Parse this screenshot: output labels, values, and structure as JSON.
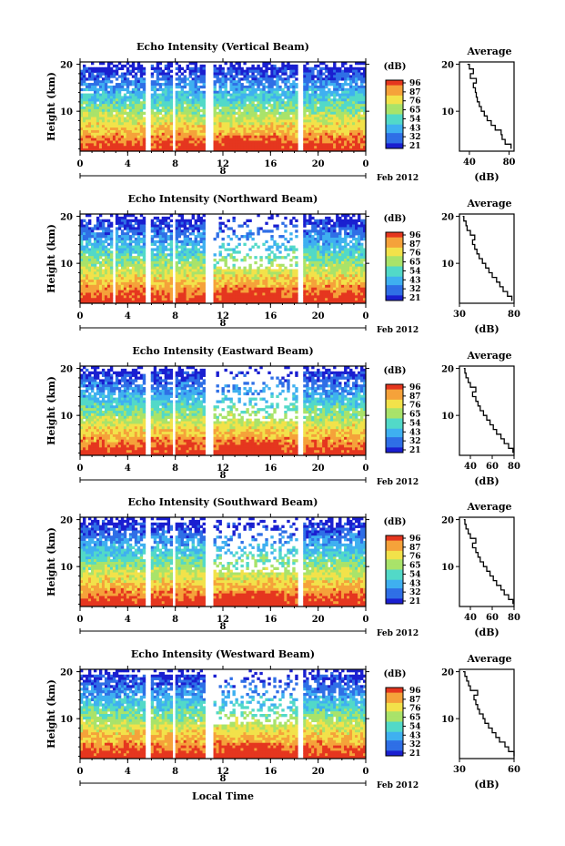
{
  "chart_data": {
    "type": "heatmap",
    "time_label": "Local Time",
    "date_label": "Feb 2012",
    "day_label": "8",
    "x_ticks": [
      "0",
      "4",
      "8",
      "12",
      "16",
      "20",
      "0"
    ],
    "height_label": "Height (km)",
    "height_ticks": [
      "20",
      "10"
    ],
    "height_range_km": [
      1.5,
      20.5
    ],
    "colorbar_unit": "(dB)",
    "colorbar_ticks": [
      "96",
      "87",
      "76",
      "65",
      "54",
      "43",
      "32",
      "21"
    ],
    "average_title": "Average",
    "average_xlabel": "(dB)",
    "colors": {
      "scale": [
        "#1a1fd0",
        "#2f6fe6",
        "#3fb0f0",
        "#52d9c8",
        "#a9e36a",
        "#f2e24a",
        "#f5a23a",
        "#e5361f"
      ],
      "axis": "#000000",
      "missing": "#ffffff"
    },
    "panels": [
      {
        "title": "Echo Intensity (Vertical Beam)",
        "x_range_h": [
          0,
          24
        ],
        "gaps_h": [
          [
            5.5,
            6.0
          ],
          [
            7.8,
            8.1
          ],
          [
            10.6,
            11.3
          ],
          [
            18.2,
            18.7
          ]
        ],
        "profile_ticks": [
          "40",
          "80"
        ],
        "profile_xlim": [
          30,
          85
        ],
        "profile_height_km": [
          2,
          3,
          4,
          5,
          6,
          7,
          8,
          9,
          10,
          11,
          12,
          13,
          14,
          15,
          16,
          17,
          18,
          19,
          20
        ],
        "profile_db": [
          82,
          76,
          73,
          72,
          66,
          62,
          58,
          55,
          52,
          50,
          48,
          47,
          46,
          44,
          47,
          41,
          44,
          40,
          38
        ]
      },
      {
        "title": "Echo Intensity (Northward Beam)",
        "x_range_h": [
          0,
          24
        ],
        "gaps_h": [
          [
            2.7,
            2.9
          ],
          [
            5.5,
            6.0
          ],
          [
            7.8,
            8.1
          ],
          [
            10.6,
            11.3
          ],
          [
            18.2,
            18.7
          ]
        ],
        "profile_ticks": [
          "30",
          "80"
        ],
        "profile_xlim": [
          30,
          80
        ],
        "profile_height_km": [
          2,
          3,
          4,
          5,
          6,
          7,
          8,
          9,
          10,
          11,
          12,
          13,
          14,
          15,
          16,
          17,
          18,
          19,
          20
        ],
        "profile_db": [
          78,
          74,
          70,
          67,
          64,
          60,
          57,
          54,
          51,
          48,
          46,
          44,
          42,
          44,
          40,
          37,
          36,
          34,
          33
        ]
      },
      {
        "title": "Echo Intensity (Eastward Beam)",
        "x_range_h": [
          0,
          24
        ],
        "gaps_h": [
          [
            5.5,
            6.0
          ],
          [
            7.8,
            8.1
          ],
          [
            10.6,
            11.3
          ],
          [
            18.2,
            18.7
          ]
        ],
        "profile_ticks": [
          "40",
          "60",
          "80"
        ],
        "profile_xlim": [
          30,
          80
        ],
        "profile_height_km": [
          2,
          3,
          4,
          5,
          6,
          7,
          8,
          9,
          10,
          11,
          12,
          13,
          14,
          15,
          16,
          17,
          18,
          19,
          20
        ],
        "profile_db": [
          79,
          75,
          71,
          68,
          64,
          61,
          58,
          55,
          52,
          49,
          47,
          45,
          42,
          45,
          40,
          38,
          36,
          35,
          34
        ]
      },
      {
        "title": "Echo Intensity (Southward Beam)",
        "x_range_h": [
          0,
          24
        ],
        "gaps_h": [
          [
            5.5,
            6.0
          ],
          [
            7.8,
            8.1
          ],
          [
            10.6,
            11.3
          ],
          [
            18.2,
            18.7
          ]
        ],
        "profile_ticks": [
          "40",
          "60",
          "80"
        ],
        "profile_xlim": [
          30,
          80
        ],
        "profile_height_km": [
          2,
          3,
          4,
          5,
          6,
          7,
          8,
          9,
          10,
          11,
          12,
          13,
          14,
          15,
          16,
          17,
          18,
          19,
          20
        ],
        "profile_db": [
          79,
          75,
          71,
          68,
          64,
          61,
          58,
          55,
          52,
          49,
          47,
          45,
          42,
          45,
          40,
          38,
          36,
          35,
          34
        ]
      },
      {
        "title": "Echo Intensity (Westward Beam)",
        "x_range_h": [
          0,
          24
        ],
        "gaps_h": [
          [
            5.5,
            6.0
          ],
          [
            7.8,
            8.1
          ],
          [
            10.6,
            11.3
          ],
          [
            18.2,
            18.7
          ]
        ],
        "profile_ticks": [
          "30",
          "60"
        ],
        "profile_xlim": [
          30,
          60
        ],
        "profile_height_km": [
          2,
          3,
          4,
          5,
          6,
          7,
          8,
          9,
          10,
          11,
          12,
          13,
          14,
          15,
          16,
          17,
          18,
          19,
          20
        ],
        "profile_db": [
          60,
          57,
          55,
          52,
          50,
          48,
          46,
          44,
          43,
          41,
          40,
          39,
          38,
          40,
          36,
          35,
          34,
          33,
          32
        ]
      }
    ]
  }
}
